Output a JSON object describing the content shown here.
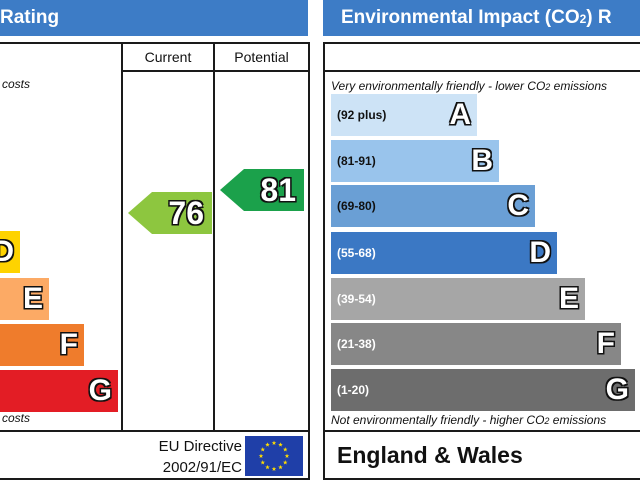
{
  "left_panel": {
    "title": "Rating",
    "col_current": "Current",
    "col_potential": "Potential",
    "top_note": "costs",
    "bottom_note": "costs",
    "bands": [
      {
        "letter": "D",
        "color": "#fed300"
      },
      {
        "letter": "E",
        "color": "#fcaa65"
      },
      {
        "letter": "F",
        "color": "#ef7c2c"
      },
      {
        "letter": "G",
        "color": "#e31d25"
      }
    ],
    "current": {
      "value": "76",
      "color": "#8dc63f"
    },
    "potential": {
      "value": "81",
      "color": "#1ba14b"
    },
    "footer_line1": "EU Directive",
    "footer_line2": "2002/91/EC"
  },
  "right_panel": {
    "title": "Environmental Impact (CO2) R",
    "top_note": "Very environmentally friendly - lower CO2 emissions",
    "bottom_note": "Not environmentally friendly - higher CO2 emissions",
    "bands": [
      {
        "range": "(92 plus)",
        "letter": "A",
        "color": "#cde3f6"
      },
      {
        "range": "(81-91)",
        "letter": "B",
        "color": "#99c4ec"
      },
      {
        "range": "(69-80)",
        "letter": "C",
        "color": "#6a9fd5"
      },
      {
        "range": "(55-68)",
        "letter": "D",
        "color": "#3b78c4"
      },
      {
        "range": "(39-54)",
        "letter": "E",
        "color": "#a6a6a6"
      },
      {
        "range": "(21-38)",
        "letter": "F",
        "color": "#878787"
      },
      {
        "range": "(1-20)",
        "letter": "G",
        "color": "#6d6d6d"
      }
    ],
    "footer": "England & Wales"
  },
  "icons": {
    "eu_flag": "eu-flag-icon"
  }
}
